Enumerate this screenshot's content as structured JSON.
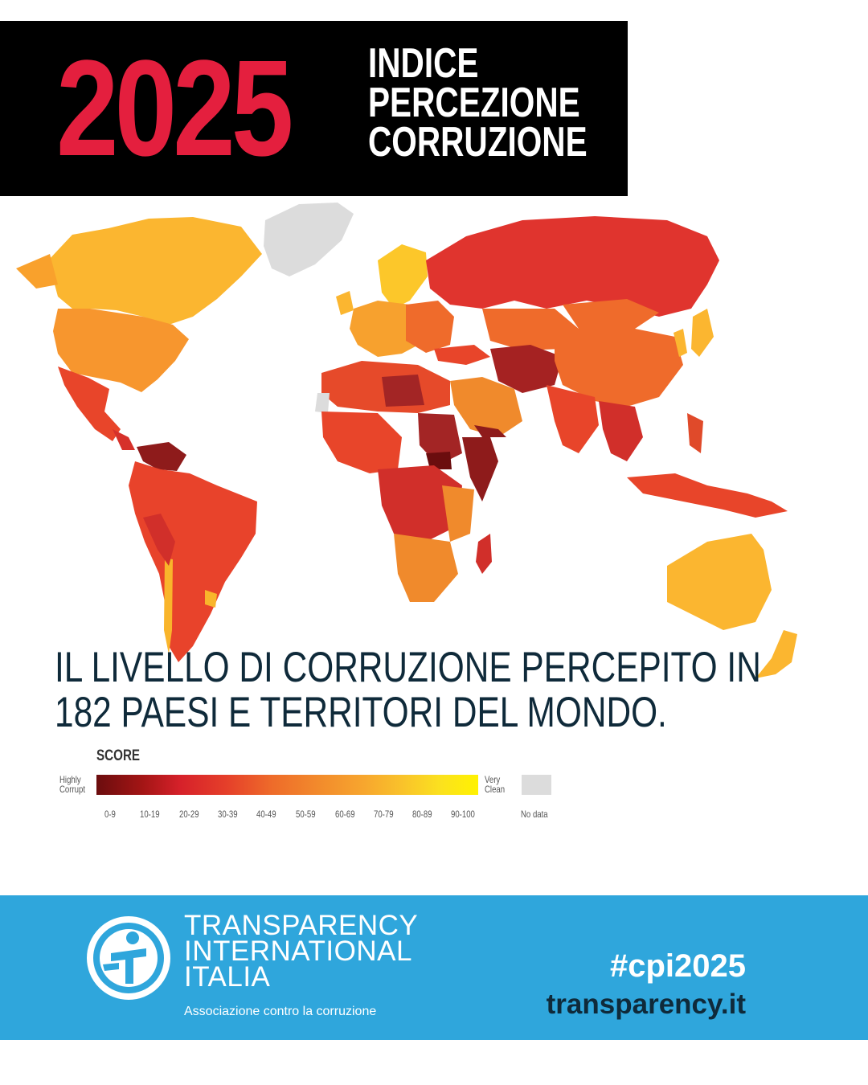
{
  "header": {
    "year": "2025",
    "title_lines": [
      "INDICE",
      "PERCEZIONE",
      "CORRUZIONE"
    ]
  },
  "subtitle": {
    "line1": "IL LIVELLO DI CORRUZIONE PERCEPITO IN",
    "line2": "182 PAESI E TERRITORI DEL MONDO."
  },
  "legend": {
    "title": "SCORE",
    "low_label": [
      "Highly",
      "Corrupt"
    ],
    "high_label": [
      "Very",
      "Clean"
    ],
    "ranges": [
      "0-9",
      "10-19",
      "20-29",
      "30-39",
      "40-49",
      "50-59",
      "60-69",
      "70-79",
      "80-89",
      "90-100"
    ],
    "no_data": "No data"
  },
  "footer": {
    "org_lines": [
      "TRANSPARENCY",
      "INTERNATIONAL",
      "ITALIA"
    ],
    "tagline": "Associazione contro la corruzione",
    "hashtag": "#cpi2025",
    "website": "transparency.it"
  },
  "colors": {
    "header_bg": "#000000",
    "year_red": "#e41f3e",
    "footer_blue": "#2fa6dc",
    "text_dark": "#0f2a3a"
  },
  "icons": [
    "globe-figure-logo-icon"
  ]
}
